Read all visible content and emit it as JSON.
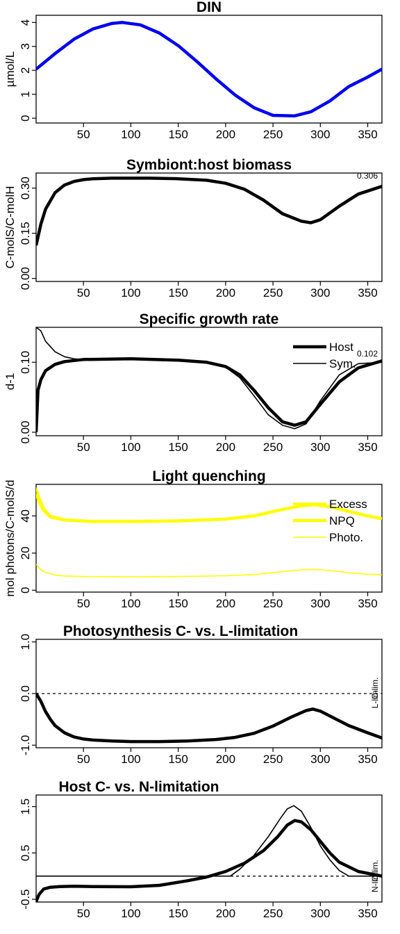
{
  "chart_data": [
    {
      "id": "din",
      "type": "line",
      "title": "DIN",
      "ylabel": "µmol/L",
      "xlim": [
        0,
        365
      ],
      "ylim": [
        -0.2,
        4.3
      ],
      "xticks": [
        "50",
        "100",
        "150",
        "200",
        "250",
        "300",
        "350"
      ],
      "yticks": [
        "0",
        "1",
        "2",
        "3",
        "4"
      ],
      "series": [
        {
          "color": "#0000ee",
          "width": "thick",
          "x": [
            0,
            20,
            40,
            60,
            80,
            91,
            110,
            130,
            150,
            170,
            190,
            210,
            230,
            250,
            273,
            290,
            310,
            330,
            350,
            365
          ],
          "y": [
            2.05,
            2.7,
            3.3,
            3.73,
            3.96,
            4.0,
            3.9,
            3.56,
            3.03,
            2.36,
            1.64,
            0.97,
            0.44,
            0.12,
            0.1,
            0.27,
            0.72,
            1.32,
            1.72,
            2.05
          ]
        }
      ]
    },
    {
      "id": "ratio",
      "type": "line",
      "title": "Symbiont:host biomass",
      "ylabel": "C-molS/C-molH",
      "annotation": "0.306",
      "xlim": [
        0,
        365
      ],
      "ylim": [
        -0.01,
        0.35
      ],
      "xticks": [
        "50",
        "100",
        "150",
        "200",
        "250",
        "300",
        "350"
      ],
      "yticks": [
        "0.00",
        "0.15",
        "0.30"
      ],
      "series": [
        {
          "color": "#000000",
          "width": "thick",
          "x": [
            0,
            5,
            10,
            20,
            30,
            40,
            50,
            60,
            80,
            100,
            120,
            150,
            180,
            200,
            220,
            240,
            260,
            280,
            290,
            300,
            320,
            340,
            365
          ],
          "y": [
            0.11,
            0.18,
            0.23,
            0.285,
            0.31,
            0.322,
            0.328,
            0.331,
            0.333,
            0.333,
            0.333,
            0.331,
            0.326,
            0.316,
            0.296,
            0.26,
            0.215,
            0.19,
            0.185,
            0.195,
            0.24,
            0.28,
            0.306
          ]
        }
      ]
    },
    {
      "id": "growth",
      "type": "line",
      "title": "Specific growth rate",
      "ylabel": "d-1",
      "annotation": "0.102",
      "legend_position": "top-right",
      "xlim": [
        0,
        365
      ],
      "ylim": [
        -0.005,
        0.15
      ],
      "xticks": [
        "50",
        "100",
        "150",
        "200",
        "250",
        "300",
        "350"
      ],
      "yticks": [
        "0.00",
        "0.10"
      ],
      "series": [
        {
          "name": "Host",
          "color": "#000000",
          "width": "thick",
          "x": [
            0,
            2,
            5,
            10,
            20,
            30,
            50,
            100,
            150,
            180,
            200,
            215,
            230,
            245,
            260,
            273,
            285,
            300,
            320,
            340,
            365
          ],
          "y": [
            0.0,
            0.06,
            0.075,
            0.088,
            0.097,
            0.101,
            0.104,
            0.105,
            0.103,
            0.1,
            0.094,
            0.082,
            0.06,
            0.035,
            0.015,
            0.01,
            0.015,
            0.04,
            0.072,
            0.092,
            0.102
          ]
        },
        {
          "name": "Sym.",
          "color": "#000000",
          "width": "thin",
          "x": [
            0,
            5,
            10,
            20,
            30,
            40,
            50,
            100,
            150,
            180,
            200,
            215,
            230,
            245,
            260,
            273,
            285,
            300,
            320,
            340,
            365
          ],
          "y": [
            0.15,
            0.145,
            0.13,
            0.115,
            0.108,
            0.105,
            0.104,
            0.105,
            0.103,
            0.1,
            0.093,
            0.078,
            0.052,
            0.025,
            0.01,
            0.005,
            0.012,
            0.045,
            0.082,
            0.098,
            0.1
          ]
        }
      ]
    },
    {
      "id": "quench",
      "type": "line",
      "title": "Light quenching",
      "ylabel": "mol photons/C-molS/d",
      "legend_position": "top-right",
      "xlim": [
        0,
        365
      ],
      "ylim": [
        -1,
        57
      ],
      "xticks": [
        "50",
        "100",
        "150",
        "200",
        "250",
        "300",
        "350"
      ],
      "yticks": [
        "0",
        "20",
        "40"
      ],
      "series": [
        {
          "name": "Excess",
          "color": "#ffff00",
          "width": "medium",
          "x": [
            0,
            3,
            8,
            15,
            30,
            60,
            100,
            150,
            200,
            230,
            260,
            280,
            295,
            310,
            330,
            350,
            365
          ],
          "y": [
            55,
            50,
            44,
            40,
            38,
            37,
            37,
            37.3,
            38.3,
            40,
            43.5,
            45.5,
            46,
            45,
            42.5,
            40,
            38.5
          ]
        },
        {
          "name": "NPQ",
          "color": "#ffff00",
          "width": "thick",
          "x": [
            0,
            3,
            8,
            15,
            30,
            60,
            100,
            150,
            200,
            230,
            260,
            280,
            295,
            310,
            330,
            350,
            365
          ],
          "y": [
            52,
            48,
            43,
            39.5,
            37.8,
            37,
            37,
            37.3,
            38.3,
            40,
            43.5,
            45.5,
            46,
            45,
            42.5,
            40,
            38.5
          ]
        },
        {
          "name": "Photo.",
          "color": "#ffff00",
          "width": "thin",
          "x": [
            0,
            5,
            10,
            20,
            30,
            50,
            100,
            150,
            200,
            230,
            260,
            280,
            295,
            310,
            330,
            350,
            365
          ],
          "y": [
            14,
            11,
            9.5,
            8.2,
            7.7,
            7.4,
            7.3,
            7.4,
            7.8,
            8.4,
            10,
            11,
            11.2,
            10.6,
            9.4,
            8.6,
            8.3
          ]
        }
      ]
    },
    {
      "id": "photolim",
      "type": "line",
      "title": "Photosynthesis C- vs. L-limitation",
      "side_labels": {
        "lower": "C-lim.",
        "upper": "L-lim."
      },
      "xlim": [
        0,
        365
      ],
      "ylim": [
        -1.05,
        1.05
      ],
      "xticks": [
        "50",
        "100",
        "150",
        "200",
        "250",
        "300",
        "350"
      ],
      "yticks": [
        "-1.0",
        "0.0",
        "1.0"
      ],
      "reference_line": 0,
      "series": [
        {
          "color": "#000000",
          "width": "thick",
          "x": [
            0,
            5,
            10,
            15,
            20,
            30,
            40,
            50,
            60,
            80,
            100,
            130,
            160,
            190,
            210,
            230,
            250,
            270,
            285,
            292,
            300,
            315,
            330,
            350,
            365
          ],
          "y": [
            0.0,
            -0.15,
            -0.35,
            -0.5,
            -0.62,
            -0.76,
            -0.84,
            -0.88,
            -0.9,
            -0.92,
            -0.93,
            -0.93,
            -0.92,
            -0.89,
            -0.85,
            -0.77,
            -0.63,
            -0.45,
            -0.33,
            -0.3,
            -0.34,
            -0.48,
            -0.62,
            -0.76,
            -0.86
          ]
        }
      ]
    },
    {
      "id": "hostlim",
      "type": "line",
      "title": "Host C- vs. N-limitation",
      "side_labels": {
        "lower": "C-lim.",
        "upper": "N-lim."
      },
      "xlim": [
        0,
        365
      ],
      "ylim": [
        -0.56,
        1.75
      ],
      "xticks": [
        "50",
        "100",
        "150",
        "200",
        "250",
        "300",
        "350"
      ],
      "yticks": [
        "-0.5",
        "0.5",
        "1.5"
      ],
      "reference_line": 0,
      "series": [
        {
          "color": "#000000",
          "width": "thick",
          "x": [
            0,
            3,
            8,
            15,
            25,
            40,
            60,
            100,
            130,
            160,
            180,
            200,
            220,
            240,
            255,
            265,
            273,
            280,
            290,
            300,
            310,
            320,
            340,
            365
          ],
          "y": [
            -0.55,
            -0.4,
            -0.28,
            -0.24,
            -0.225,
            -0.22,
            -0.225,
            -0.23,
            -0.2,
            -0.1,
            -0.02,
            0.1,
            0.28,
            0.55,
            0.85,
            1.1,
            1.2,
            1.17,
            1.0,
            0.75,
            0.5,
            0.3,
            0.1,
            0.0
          ]
        },
        {
          "color": "#000000",
          "width": "thin",
          "x": [
            0,
            50,
            100,
            150,
            200,
            205,
            215,
            230,
            245,
            258,
            265,
            272,
            280,
            290,
            300,
            310,
            320,
            330,
            365
          ],
          "y": [
            0.0,
            0.0,
            0.0,
            0.0,
            0.0,
            0.0,
            0.15,
            0.45,
            0.85,
            1.25,
            1.45,
            1.52,
            1.4,
            1.05,
            0.65,
            0.35,
            0.12,
            0.0,
            0.0
          ]
        }
      ]
    }
  ]
}
